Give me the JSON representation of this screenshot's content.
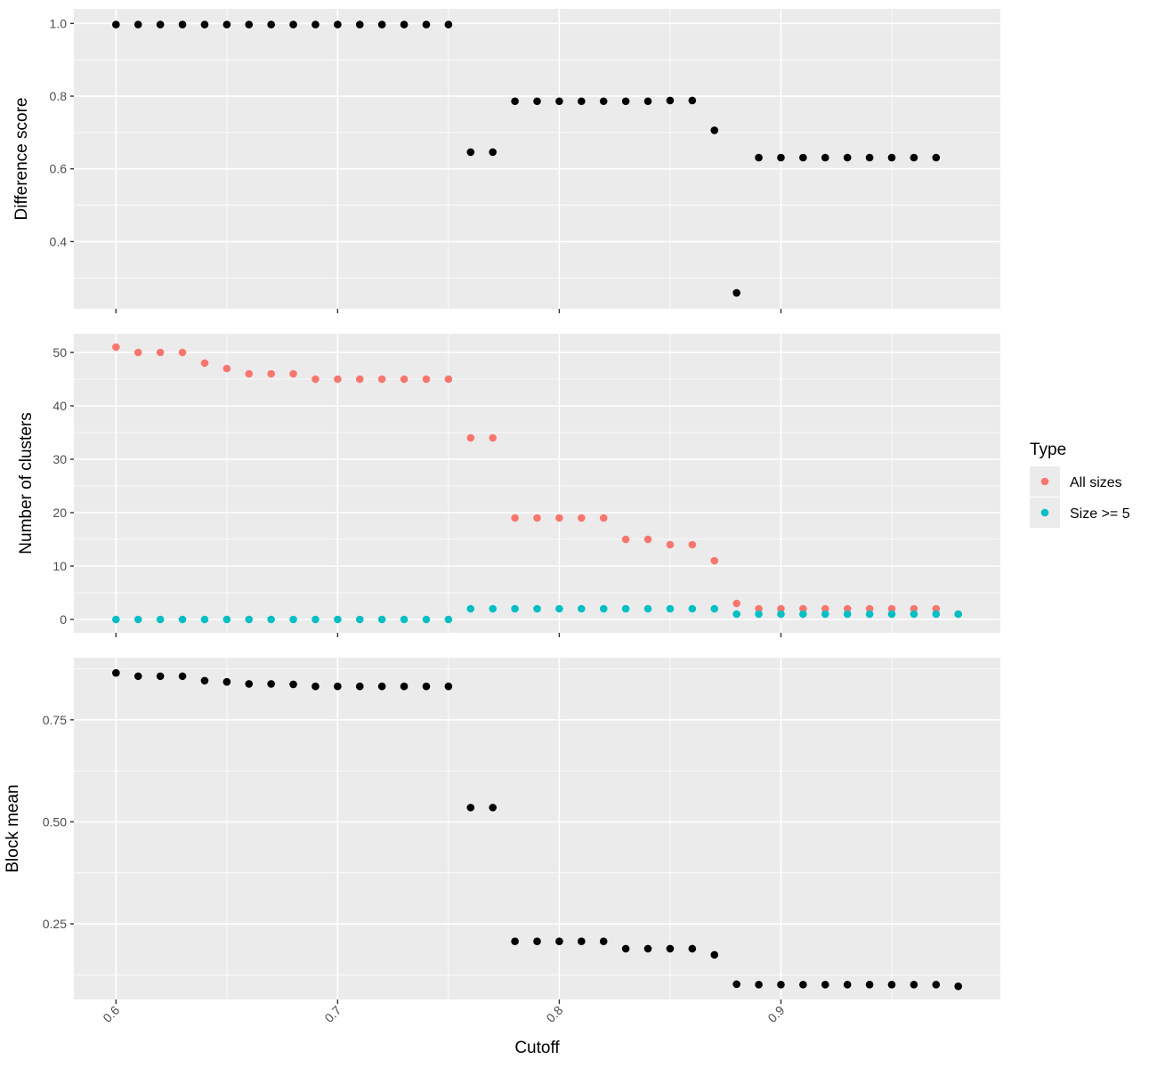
{
  "chart_data": [
    {
      "type": "scatter",
      "panel": "top",
      "xlabel": "",
      "ylabel": "Difference score",
      "xlim": [
        0.581,
        0.999
      ],
      "ylim": [
        0.215,
        1.04
      ],
      "xticks": [
        0.6,
        0.7,
        0.8,
        0.9
      ],
      "yticks": [
        0.4,
        0.6,
        0.8,
        1.0
      ],
      "ytick_labels": [
        "0.4",
        "0.6",
        "0.8",
        "1.0"
      ],
      "grid": true,
      "color": "#000000",
      "x": [
        0.6,
        0.61,
        0.62,
        0.63,
        0.64,
        0.65,
        0.66,
        0.67,
        0.68,
        0.69,
        0.7,
        0.71,
        0.72,
        0.73,
        0.74,
        0.75,
        0.76,
        0.77,
        0.78,
        0.79,
        0.8,
        0.81,
        0.82,
        0.83,
        0.84,
        0.85,
        0.86,
        0.87,
        0.88,
        0.89,
        0.9,
        0.91,
        0.92,
        0.93,
        0.94,
        0.95,
        0.96,
        0.97
      ],
      "y": [
        0.997,
        0.997,
        0.997,
        0.997,
        0.997,
        0.997,
        0.997,
        0.997,
        0.997,
        0.997,
        0.997,
        0.997,
        0.997,
        0.997,
        0.997,
        0.997,
        0.646,
        0.646,
        0.786,
        0.786,
        0.786,
        0.786,
        0.786,
        0.786,
        0.786,
        0.788,
        0.788,
        0.706,
        0.259,
        0.631,
        0.631,
        0.631,
        0.631,
        0.631,
        0.631,
        0.631,
        0.631,
        0.631
      ]
    },
    {
      "type": "scatter",
      "panel": "middle",
      "xlabel": "",
      "ylabel": "Number of clusters",
      "xlim": [
        0.581,
        0.999
      ],
      "ylim": [
        -2.5,
        53.5
      ],
      "xticks": [
        0.6,
        0.7,
        0.8,
        0.9
      ],
      "yticks": [
        0,
        10,
        20,
        30,
        40,
        50
      ],
      "ytick_labels": [
        "0",
        "10",
        "20",
        "30",
        "40",
        "50"
      ],
      "grid": true,
      "legend": {
        "title": "Type",
        "placement": "right"
      },
      "series": [
        {
          "name": "All sizes",
          "color": "#F8766D",
          "x": [
            0.6,
            0.61,
            0.62,
            0.63,
            0.64,
            0.65,
            0.66,
            0.67,
            0.68,
            0.69,
            0.7,
            0.71,
            0.72,
            0.73,
            0.74,
            0.75,
            0.76,
            0.77,
            0.78,
            0.79,
            0.8,
            0.81,
            0.82,
            0.83,
            0.84,
            0.85,
            0.86,
            0.87,
            0.88,
            0.89,
            0.9,
            0.91,
            0.92,
            0.93,
            0.94,
            0.95,
            0.96,
            0.97,
            0.98
          ],
          "y": [
            51,
            50,
            50,
            50,
            48,
            47,
            46,
            46,
            46,
            45,
            45,
            45,
            45,
            45,
            45,
            45,
            34,
            34,
            19,
            19,
            19,
            19,
            19,
            15,
            15,
            14,
            14,
            11,
            3,
            2,
            2,
            2,
            2,
            2,
            2,
            2,
            2,
            2,
            1
          ]
        },
        {
          "name": "Size >= 5",
          "color": "#00BFC4",
          "x": [
            0.6,
            0.61,
            0.62,
            0.63,
            0.64,
            0.65,
            0.66,
            0.67,
            0.68,
            0.69,
            0.7,
            0.71,
            0.72,
            0.73,
            0.74,
            0.75,
            0.76,
            0.77,
            0.78,
            0.79,
            0.8,
            0.81,
            0.82,
            0.83,
            0.84,
            0.85,
            0.86,
            0.87,
            0.88,
            0.89,
            0.9,
            0.91,
            0.92,
            0.93,
            0.94,
            0.95,
            0.96,
            0.97,
            0.98
          ],
          "y": [
            0,
            0,
            0,
            0,
            0,
            0,
            0,
            0,
            0,
            0,
            0,
            0,
            0,
            0,
            0,
            0,
            2,
            2,
            2,
            2,
            2,
            2,
            2,
            2,
            2,
            2,
            2,
            2,
            1,
            1,
            1,
            1,
            1,
            1,
            1,
            1,
            1,
            1,
            1
          ]
        }
      ]
    },
    {
      "type": "scatter",
      "panel": "bottom",
      "xlabel": "Cutoff",
      "ylabel": "Block mean",
      "xlim": [
        0.581,
        0.999
      ],
      "ylim": [
        0.0646,
        0.9023
      ],
      "xticks": [
        0.6,
        0.7,
        0.8,
        0.9
      ],
      "xtick_labels": [
        "0.6",
        "0.7",
        "0.8",
        "0.9"
      ],
      "yticks": [
        0.25,
        0.5,
        0.75
      ],
      "ytick_labels": [
        "0.25",
        "0.50",
        "0.75"
      ],
      "grid": true,
      "color": "#000000",
      "x": [
        0.6,
        0.61,
        0.62,
        0.63,
        0.64,
        0.65,
        0.66,
        0.67,
        0.68,
        0.69,
        0.7,
        0.71,
        0.72,
        0.73,
        0.74,
        0.75,
        0.76,
        0.77,
        0.78,
        0.79,
        0.8,
        0.81,
        0.82,
        0.83,
        0.84,
        0.85,
        0.86,
        0.87,
        0.88,
        0.89,
        0.9,
        0.91,
        0.92,
        0.93,
        0.94,
        0.95,
        0.96,
        0.97,
        0.98
      ],
      "y": [
        0.865,
        0.857,
        0.857,
        0.857,
        0.846,
        0.843,
        0.838,
        0.838,
        0.837,
        0.832,
        0.832,
        0.832,
        0.832,
        0.832,
        0.832,
        0.832,
        0.535,
        0.535,
        0.207,
        0.207,
        0.207,
        0.207,
        0.207,
        0.189,
        0.189,
        0.189,
        0.189,
        0.174,
        0.102,
        0.101,
        0.101,
        0.101,
        0.101,
        0.101,
        0.101,
        0.101,
        0.101,
        0.101,
        0.097
      ]
    }
  ]
}
